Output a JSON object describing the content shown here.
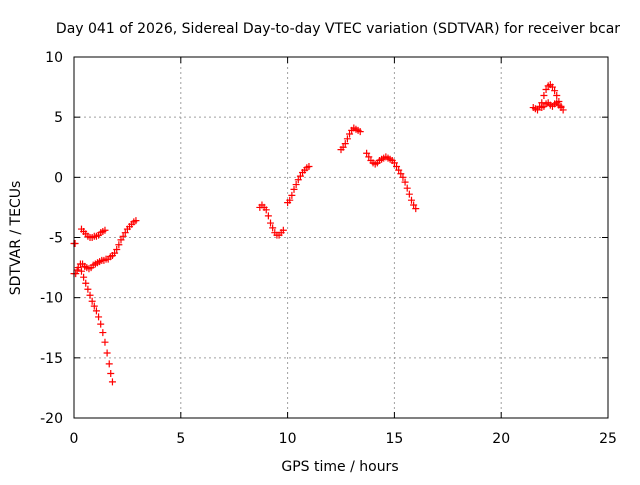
{
  "chart_data": {
    "type": "scatter",
    "title": "Day 041 of 2026, Sidereal Day-to-day VTEC variation (SDTVAR) for receiver bcar",
    "xlabel": "GPS time / hours",
    "ylabel": "SDTVAR / TECUs",
    "xlim": [
      0,
      25
    ],
    "ylim": [
      -20,
      10
    ],
    "xticks": [
      0,
      5,
      10,
      15,
      20,
      25
    ],
    "yticks": [
      -20,
      -15,
      -10,
      -5,
      0,
      5,
      10
    ],
    "grid": true,
    "marker": "+",
    "color": "#ff0000",
    "series": [
      {
        "points": [
          [
            0.0,
            -5.5
          ],
          [
            0.05,
            -5.5
          ],
          [
            0.35,
            -4.3
          ],
          [
            0.45,
            -4.5
          ],
          [
            0.55,
            -4.7
          ],
          [
            0.65,
            -4.9
          ],
          [
            0.75,
            -5.0
          ],
          [
            0.85,
            -5.0
          ],
          [
            0.95,
            -4.9
          ],
          [
            1.05,
            -4.9
          ],
          [
            1.15,
            -4.8
          ],
          [
            1.25,
            -4.6
          ],
          [
            1.35,
            -4.5
          ],
          [
            1.45,
            -4.4
          ],
          [
            0.0,
            -8.0
          ],
          [
            0.08,
            -8.0
          ],
          [
            0.15,
            -7.7
          ],
          [
            0.2,
            -7.5
          ],
          [
            0.3,
            -7.2
          ],
          [
            0.4,
            -7.2
          ],
          [
            0.5,
            -7.4
          ],
          [
            0.6,
            -7.5
          ],
          [
            0.7,
            -7.6
          ],
          [
            0.8,
            -7.5
          ],
          [
            0.9,
            -7.3
          ],
          [
            1.0,
            -7.2
          ],
          [
            1.1,
            -7.1
          ],
          [
            1.2,
            -7.0
          ],
          [
            1.3,
            -6.9
          ],
          [
            1.4,
            -6.9
          ],
          [
            1.5,
            -6.8
          ],
          [
            1.6,
            -6.8
          ],
          [
            1.7,
            -6.6
          ],
          [
            1.8,
            -6.5
          ],
          [
            1.9,
            -6.3
          ],
          [
            2.0,
            -6.0
          ],
          [
            2.1,
            -5.6
          ],
          [
            2.2,
            -5.2
          ],
          [
            2.3,
            -4.9
          ],
          [
            2.4,
            -4.6
          ],
          [
            2.5,
            -4.3
          ],
          [
            2.6,
            -4.1
          ],
          [
            2.7,
            -3.9
          ],
          [
            2.8,
            -3.7
          ],
          [
            2.9,
            -3.6
          ],
          [
            0.35,
            -7.8
          ],
          [
            0.45,
            -8.3
          ],
          [
            0.55,
            -8.8
          ],
          [
            0.65,
            -9.3
          ],
          [
            0.75,
            -9.8
          ],
          [
            0.85,
            -10.3
          ],
          [
            0.95,
            -10.7
          ],
          [
            1.05,
            -11.1
          ],
          [
            1.15,
            -11.6
          ],
          [
            1.25,
            -12.2
          ],
          [
            1.35,
            -12.9
          ],
          [
            1.45,
            -13.7
          ],
          [
            1.55,
            -14.6
          ],
          [
            1.65,
            -15.5
          ],
          [
            1.72,
            -16.3
          ],
          [
            1.8,
            -17.0
          ],
          [
            8.7,
            -2.5
          ],
          [
            8.8,
            -2.3
          ],
          [
            8.9,
            -2.5
          ],
          [
            9.0,
            -2.7
          ],
          [
            9.1,
            -3.2
          ],
          [
            9.2,
            -3.8
          ],
          [
            9.3,
            -4.2
          ],
          [
            9.4,
            -4.6
          ],
          [
            9.5,
            -4.8
          ],
          [
            9.6,
            -4.8
          ],
          [
            9.7,
            -4.6
          ],
          [
            9.8,
            -4.4
          ],
          [
            10.0,
            -2.1
          ],
          [
            10.1,
            -1.9
          ],
          [
            10.2,
            -1.5
          ],
          [
            10.3,
            -1.0
          ],
          [
            10.4,
            -0.6
          ],
          [
            10.5,
            -0.2
          ],
          [
            10.6,
            0.1
          ],
          [
            10.7,
            0.4
          ],
          [
            10.8,
            0.6
          ],
          [
            10.9,
            0.8
          ],
          [
            11.0,
            0.9
          ],
          [
            12.5,
            2.3
          ],
          [
            12.6,
            2.5
          ],
          [
            12.7,
            2.8
          ],
          [
            12.8,
            3.2
          ],
          [
            12.9,
            3.6
          ],
          [
            13.0,
            3.9
          ],
          [
            13.1,
            4.1
          ],
          [
            13.2,
            4.0
          ],
          [
            13.3,
            3.9
          ],
          [
            13.4,
            3.8
          ],
          [
            13.7,
            2.0
          ],
          [
            13.8,
            1.7
          ],
          [
            13.9,
            1.4
          ],
          [
            14.0,
            1.2
          ],
          [
            14.1,
            1.1
          ],
          [
            14.2,
            1.2
          ],
          [
            14.3,
            1.4
          ],
          [
            14.4,
            1.5
          ],
          [
            14.5,
            1.6
          ],
          [
            14.6,
            1.7
          ],
          [
            14.7,
            1.6
          ],
          [
            14.8,
            1.5
          ],
          [
            14.9,
            1.4
          ],
          [
            15.0,
            1.2
          ],
          [
            15.1,
            0.9
          ],
          [
            15.2,
            0.6
          ],
          [
            15.3,
            0.3
          ],
          [
            15.4,
            0.0
          ],
          [
            15.5,
            -0.4
          ],
          [
            15.6,
            -0.9
          ],
          [
            15.7,
            -1.4
          ],
          [
            15.8,
            -1.9
          ],
          [
            15.9,
            -2.3
          ],
          [
            16.0,
            -2.6
          ],
          [
            21.5,
            5.8
          ],
          [
            21.6,
            5.7
          ],
          [
            21.7,
            5.6
          ],
          [
            21.8,
            5.9
          ],
          [
            21.9,
            6.2
          ],
          [
            22.0,
            6.8
          ],
          [
            22.1,
            7.3
          ],
          [
            22.2,
            7.6
          ],
          [
            22.3,
            7.7
          ],
          [
            22.4,
            7.5
          ],
          [
            22.5,
            7.2
          ],
          [
            22.6,
            6.8
          ],
          [
            22.7,
            6.3
          ],
          [
            22.8,
            5.9
          ],
          [
            22.9,
            5.6
          ],
          [
            21.9,
            5.8
          ],
          [
            22.0,
            5.9
          ],
          [
            22.1,
            6.1
          ],
          [
            22.2,
            6.2
          ],
          [
            22.3,
            6.0
          ],
          [
            22.4,
            5.9
          ],
          [
            22.5,
            6.1
          ],
          [
            22.6,
            6.2
          ],
          [
            22.7,
            6.0
          ],
          [
            22.8,
            5.8
          ]
        ]
      }
    ]
  }
}
